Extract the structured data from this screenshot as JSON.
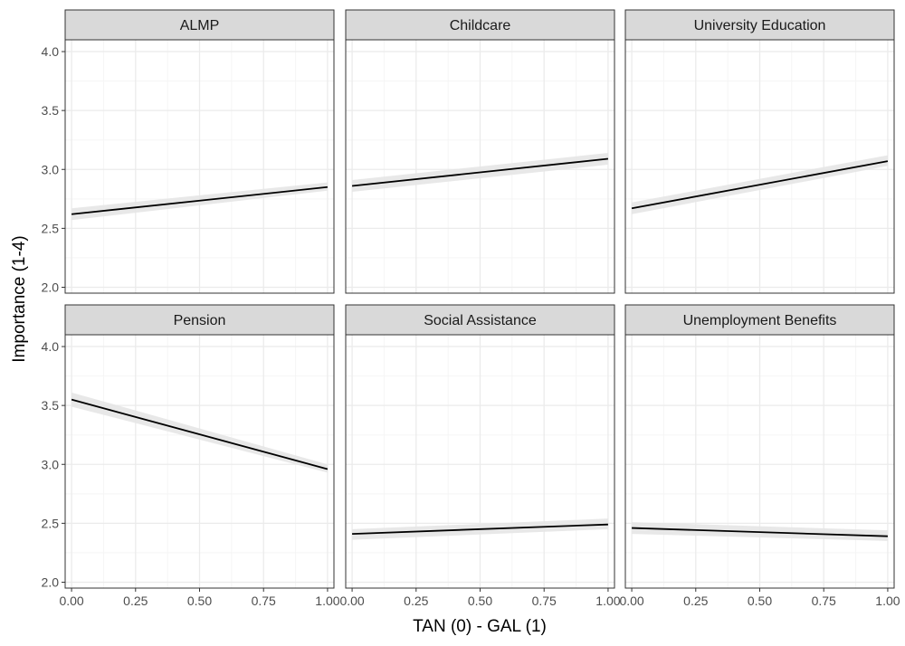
{
  "chart_data": {
    "type": "line",
    "xlabel": "TAN (0) - GAL (1)",
    "ylabel": "Importance (1-4)",
    "xlim": [
      -0.025,
      1.025
    ],
    "ylim": [
      1.95,
      4.1
    ],
    "x_ticks": [
      0.0,
      0.25,
      0.5,
      0.75,
      1.0
    ],
    "x_tick_labels": [
      "0.00",
      "0.25",
      "0.50",
      "0.75",
      "1.00"
    ],
    "y_ticks": [
      2.0,
      2.5,
      3.0,
      3.5,
      4.0
    ],
    "y_tick_labels": [
      "2.0",
      "2.5",
      "3.0",
      "3.5",
      "4.0"
    ],
    "grid": true,
    "panels": [
      {
        "title": "ALMP",
        "x": [
          0,
          1
        ],
        "y": [
          2.62,
          2.85
        ],
        "ci_lower": [
          2.57,
          2.82
        ],
        "ci_upper": [
          2.67,
          2.89
        ]
      },
      {
        "title": "Childcare",
        "x": [
          0,
          1
        ],
        "y": [
          2.86,
          3.09
        ],
        "ci_lower": [
          2.81,
          3.04
        ],
        "ci_upper": [
          2.91,
          3.14
        ]
      },
      {
        "title": "University Education",
        "x": [
          0,
          1
        ],
        "y": [
          2.67,
          3.07
        ],
        "ci_lower": [
          2.62,
          3.03
        ],
        "ci_upper": [
          2.72,
          3.12
        ]
      },
      {
        "title": "Pension",
        "x": [
          0,
          1
        ],
        "y": [
          3.55,
          2.96
        ],
        "ci_lower": [
          3.49,
          2.93
        ],
        "ci_upper": [
          3.61,
          3.0
        ]
      },
      {
        "title": "Social Assistance",
        "x": [
          0,
          1
        ],
        "y": [
          2.41,
          2.49
        ],
        "ci_lower": [
          2.36,
          2.45
        ],
        "ci_upper": [
          2.45,
          2.54
        ]
      },
      {
        "title": "Unemployment Benefits",
        "x": [
          0,
          1
        ],
        "y": [
          2.46,
          2.39
        ],
        "ci_lower": [
          2.41,
          2.35
        ],
        "ci_upper": [
          2.51,
          2.44
        ]
      }
    ],
    "colors": {
      "strip_fill": "#d9d9d9",
      "strip_border": "#333333",
      "panel_border": "#333333",
      "grid_major": "#ebebeb",
      "grid_minor": "#f5f5f5",
      "ribbon": "#e6e6e6",
      "line": "#000000"
    }
  }
}
